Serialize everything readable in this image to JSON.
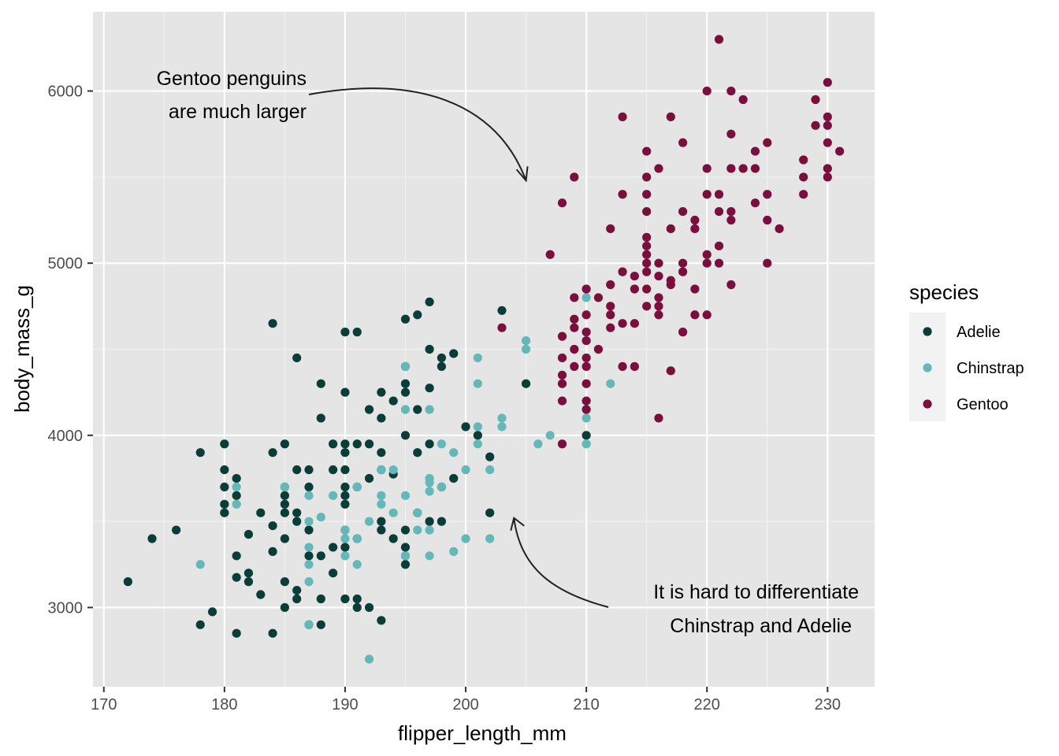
{
  "chart_data": {
    "type": "scatter",
    "xlabel": "flipper_length_mm",
    "ylabel": "body_mass_g",
    "xlim": [
      169.1,
      233.9
    ],
    "ylim": [
      2540,
      6460
    ],
    "x_ticks": [
      170,
      180,
      190,
      200,
      210,
      220,
      230
    ],
    "y_ticks": [
      3000,
      4000,
      5000,
      6000
    ],
    "grid": true,
    "background": "#e5e5e5",
    "legend": {
      "title": "species",
      "position": "right"
    },
    "annotations": [
      {
        "lines": [
          "Gentoo penguins",
          "are much larger"
        ],
        "arrow_to": [
          205,
          5480
        ]
      },
      {
        "lines": [
          "It is hard to differentiate",
          "Chinstrap and Adelie"
        ],
        "arrow_to": [
          204,
          3520
        ]
      }
    ],
    "series": [
      {
        "name": "Adelie",
        "color": "#0b3d38",
        "points": [
          [
            172,
            3150
          ],
          [
            174,
            3400
          ],
          [
            176,
            3450
          ],
          [
            178,
            3900
          ],
          [
            178,
            2900
          ],
          [
            179,
            2975
          ],
          [
            180,
            3950
          ],
          [
            180,
            3700
          ],
          [
            180,
            3600
          ],
          [
            180,
            3550
          ],
          [
            180,
            3800
          ],
          [
            181,
            3750
          ],
          [
            181,
            3650
          ],
          [
            181,
            3300
          ],
          [
            181,
            3175
          ],
          [
            181,
            2850
          ],
          [
            182,
            3425
          ],
          [
            182,
            3200
          ],
          [
            182,
            3150
          ],
          [
            183,
            3550
          ],
          [
            183,
            3075
          ],
          [
            184,
            3900
          ],
          [
            184,
            4650
          ],
          [
            184,
            3475
          ],
          [
            184,
            3325
          ],
          [
            184,
            2850
          ],
          [
            185,
            3950
          ],
          [
            185,
            3700
          ],
          [
            185,
            3650
          ],
          [
            185,
            3600
          ],
          [
            185,
            3550
          ],
          [
            185,
            3400
          ],
          [
            185,
            3150
          ],
          [
            185,
            3000
          ],
          [
            186,
            4450
          ],
          [
            186,
            3800
          ],
          [
            186,
            3550
          ],
          [
            186,
            3500
          ],
          [
            186,
            3100
          ],
          [
            186,
            3050
          ],
          [
            187,
            3800
          ],
          [
            187,
            3700
          ],
          [
            187,
            3450
          ],
          [
            187,
            3300
          ],
          [
            187,
            2900
          ],
          [
            188,
            4300
          ],
          [
            188,
            4100
          ],
          [
            188,
            3300
          ],
          [
            188,
            3050
          ],
          [
            188,
            2900
          ],
          [
            189,
            3950
          ],
          [
            189,
            3800
          ],
          [
            189,
            3350
          ],
          [
            189,
            3200
          ],
          [
            190,
            4600
          ],
          [
            190,
            4250
          ],
          [
            190,
            3950
          ],
          [
            190,
            3900
          ],
          [
            190,
            3800
          ],
          [
            190,
            3700
          ],
          [
            190,
            3650
          ],
          [
            190,
            3600
          ],
          [
            190,
            3450
          ],
          [
            190,
            3350
          ],
          [
            190,
            3050
          ],
          [
            191,
            4600
          ],
          [
            191,
            3950
          ],
          [
            191,
            3700
          ],
          [
            191,
            3400
          ],
          [
            191,
            3050
          ],
          [
            191,
            3000
          ],
          [
            192,
            4150
          ],
          [
            192,
            3950
          ],
          [
            192,
            3750
          ],
          [
            192,
            3000
          ],
          [
            193,
            4250
          ],
          [
            193,
            4100
          ],
          [
            193,
            3900
          ],
          [
            193,
            3800
          ],
          [
            193,
            3500
          ],
          [
            193,
            3450
          ],
          [
            193,
            2925
          ],
          [
            194,
            4200
          ],
          [
            194,
            3775
          ],
          [
            194,
            3400
          ],
          [
            195,
            4675
          ],
          [
            195,
            4400
          ],
          [
            195,
            4300
          ],
          [
            195,
            4250
          ],
          [
            195,
            4000
          ],
          [
            195,
            3450
          ],
          [
            195,
            3350
          ],
          [
            195,
            3300
          ],
          [
            195,
            3250
          ],
          [
            196,
            4700
          ],
          [
            196,
            4150
          ],
          [
            196,
            3900
          ],
          [
            196,
            3550
          ],
          [
            197,
            4775
          ],
          [
            197,
            4500
          ],
          [
            197,
            4275
          ],
          [
            197,
            3950
          ],
          [
            197,
            3500
          ],
          [
            198,
            4450
          ],
          [
            198,
            4400
          ],
          [
            198,
            3700
          ],
          [
            198,
            3500
          ],
          [
            199,
            4475
          ],
          [
            199,
            3750
          ],
          [
            200,
            4050
          ],
          [
            201,
            4000
          ],
          [
            202,
            3875
          ],
          [
            202,
            3550
          ],
          [
            203,
            4725
          ],
          [
            205,
            4300
          ],
          [
            210,
            4000
          ]
        ]
      },
      {
        "name": "Chinstrap",
        "color": "#65b8b8",
        "points": [
          [
            178,
            3250
          ],
          [
            181,
            3700
          ],
          [
            181,
            3600
          ],
          [
            185,
            3700
          ],
          [
            187,
            3650
          ],
          [
            187,
            3500
          ],
          [
            187,
            3350
          ],
          [
            187,
            3250
          ],
          [
            187,
            3150
          ],
          [
            187,
            2900
          ],
          [
            188,
            3525
          ],
          [
            189,
            3650
          ],
          [
            190,
            3450
          ],
          [
            190,
            3400
          ],
          [
            190,
            3300
          ],
          [
            191,
            3700
          ],
          [
            191,
            3400
          ],
          [
            191,
            3250
          ],
          [
            192,
            3500
          ],
          [
            192,
            2700
          ],
          [
            193,
            3800
          ],
          [
            193,
            3650
          ],
          [
            193,
            3600
          ],
          [
            194,
            3800
          ],
          [
            194,
            3550
          ],
          [
            195,
            4400
          ],
          [
            195,
            4150
          ],
          [
            195,
            3650
          ],
          [
            195,
            3300
          ],
          [
            196,
            3550
          ],
          [
            196,
            3450
          ],
          [
            197,
            4150
          ],
          [
            197,
            3750
          ],
          [
            197,
            3725
          ],
          [
            197,
            3675
          ],
          [
            197,
            3450
          ],
          [
            197,
            3300
          ],
          [
            198,
            3950
          ],
          [
            198,
            3700
          ],
          [
            199,
            3900
          ],
          [
            199,
            3325
          ],
          [
            200,
            3800
          ],
          [
            200,
            3400
          ],
          [
            201,
            4450
          ],
          [
            201,
            4300
          ],
          [
            201,
            4050
          ],
          [
            201,
            3950
          ],
          [
            202,
            3800
          ],
          [
            202,
            3400
          ],
          [
            203,
            4100
          ],
          [
            203,
            4050
          ],
          [
            205,
            4550
          ],
          [
            205,
            4500
          ],
          [
            206,
            3950
          ],
          [
            207,
            4000
          ],
          [
            210,
            4800
          ],
          [
            210,
            4100
          ],
          [
            210,
            3950
          ],
          [
            212,
            4300
          ]
        ]
      },
      {
        "name": "Gentoo",
        "color": "#7a0f3e",
        "points": [
          [
            203,
            4625
          ],
          [
            207,
            5050
          ],
          [
            208,
            5350
          ],
          [
            208,
            4575
          ],
          [
            208,
            4450
          ],
          [
            208,
            4350
          ],
          [
            208,
            4300
          ],
          [
            208,
            4200
          ],
          [
            208,
            3950
          ],
          [
            209,
            5500
          ],
          [
            209,
            4800
          ],
          [
            209,
            4675
          ],
          [
            209,
            4625
          ],
          [
            209,
            4500
          ],
          [
            209,
            4400
          ],
          [
            210,
            4850
          ],
          [
            210,
            4700
          ],
          [
            210,
            4600
          ],
          [
            210,
            4550
          ],
          [
            210,
            4450
          ],
          [
            210,
            4400
          ],
          [
            210,
            4300
          ],
          [
            210,
            4200
          ],
          [
            210,
            4150
          ],
          [
            211,
            4800
          ],
          [
            211,
            4500
          ],
          [
            212,
            5200
          ],
          [
            212,
            4875
          ],
          [
            212,
            4750
          ],
          [
            212,
            4700
          ],
          [
            212,
            4625
          ],
          [
            213,
            5850
          ],
          [
            213,
            5400
          ],
          [
            213,
            4950
          ],
          [
            213,
            4650
          ],
          [
            213,
            4400
          ],
          [
            214,
            4925
          ],
          [
            214,
            4850
          ],
          [
            214,
            4650
          ],
          [
            214,
            4400
          ],
          [
            215,
            5650
          ],
          [
            215,
            5500
          ],
          [
            215,
            5400
          ],
          [
            215,
            5300
          ],
          [
            215,
            5150
          ],
          [
            215,
            5100
          ],
          [
            215,
            5050
          ],
          [
            215,
            5000
          ],
          [
            215,
            4950
          ],
          [
            215,
            4850
          ],
          [
            215,
            4750
          ],
          [
            216,
            5550
          ],
          [
            216,
            5000
          ],
          [
            216,
            4925
          ],
          [
            216,
            4800
          ],
          [
            216,
            4750
          ],
          [
            216,
            4700
          ],
          [
            216,
            4100
          ],
          [
            217,
            5850
          ],
          [
            217,
            5200
          ],
          [
            217,
            4900
          ],
          [
            217,
            4875
          ],
          [
            217,
            4375
          ],
          [
            218,
            5700
          ],
          [
            218,
            5300
          ],
          [
            218,
            5000
          ],
          [
            218,
            4950
          ],
          [
            218,
            4600
          ],
          [
            219,
            5250
          ],
          [
            219,
            5200
          ],
          [
            219,
            4850
          ],
          [
            219,
            4700
          ],
          [
            220,
            6000
          ],
          [
            220,
            5550
          ],
          [
            220,
            5400
          ],
          [
            220,
            5050
          ],
          [
            220,
            5000
          ],
          [
            220,
            4700
          ],
          [
            221,
            6300
          ],
          [
            221,
            5400
          ],
          [
            221,
            5300
          ],
          [
            221,
            5100
          ],
          [
            221,
            5000
          ],
          [
            222,
            6000
          ],
          [
            222,
            5750
          ],
          [
            222,
            5550
          ],
          [
            222,
            5300
          ],
          [
            222,
            5250
          ],
          [
            222,
            4875
          ],
          [
            223,
            5950
          ],
          [
            223,
            5550
          ],
          [
            224,
            5650
          ],
          [
            224,
            5550
          ],
          [
            224,
            5350
          ],
          [
            225,
            5700
          ],
          [
            225,
            5400
          ],
          [
            225,
            5250
          ],
          [
            225,
            5000
          ],
          [
            226,
            5200
          ],
          [
            228,
            5600
          ],
          [
            228,
            5500
          ],
          [
            228,
            5400
          ],
          [
            229,
            5950
          ],
          [
            229,
            5800
          ],
          [
            230,
            6050
          ],
          [
            230,
            5850
          ],
          [
            230,
            5800
          ],
          [
            230,
            5700
          ],
          [
            230,
            5550
          ],
          [
            230,
            5500
          ],
          [
            231,
            5650
          ]
        ]
      }
    ]
  }
}
